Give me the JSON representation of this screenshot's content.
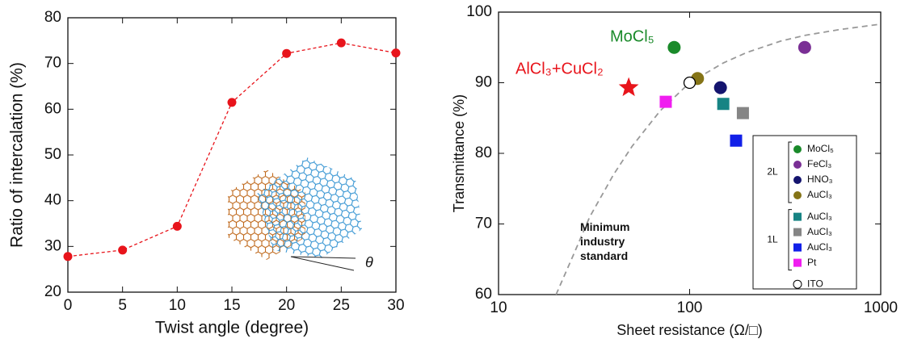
{
  "chart_data": [
    {
      "type": "line",
      "x_label": "Twist angle (degree)",
      "y_label": "Ratio of intercalation (%)",
      "x": [
        0,
        5,
        10,
        15,
        20,
        25,
        30
      ],
      "values": [
        27.8,
        29.2,
        34.4,
        61.5,
        72.2,
        74.5,
        72.3
      ],
      "color": "#e8141b",
      "line_style": "dashed",
      "xlim": [
        0,
        30
      ],
      "xticks": [
        0,
        5,
        10,
        15,
        20,
        25,
        30
      ],
      "ylim": [
        20,
        80
      ],
      "yticks": [
        20,
        30,
        40,
        50,
        60,
        70,
        80
      ],
      "inset_label": "θ"
    },
    {
      "type": "scatter",
      "x_label": "Sheet resistance (Ω/□)",
      "y_label": "Transmittance (%)",
      "log_x": true,
      "xlim": [
        10,
        1000
      ],
      "xticks": [
        10,
        100,
        1000
      ],
      "ylim": [
        60,
        100
      ],
      "yticks": [
        60,
        70,
        80,
        90,
        100
      ],
      "legend": "lower right",
      "series": [
        {
          "name": "MoCl₅",
          "group": "2L",
          "marker": "circle",
          "color": "#1a8a2a",
          "x": [
            83
          ],
          "values": [
            95
          ]
        },
        {
          "name": "FeCl₃",
          "group": "2L",
          "marker": "circle",
          "color": "#7a2f95",
          "x": [
            400
          ],
          "values": [
            95
          ]
        },
        {
          "name": "HNO₃",
          "group": "2L",
          "marker": "circle",
          "color": "#14146e",
          "x": [
            145
          ],
          "values": [
            89.3
          ]
        },
        {
          "name": "AuCl₃",
          "group": "2L",
          "marker": "circle",
          "color": "#857417",
          "x": [
            110
          ],
          "values": [
            90.6
          ]
        },
        {
          "name": "AuCl₃",
          "group": "1L",
          "marker": "square",
          "color": "#178484",
          "x": [
            150
          ],
          "values": [
            87
          ]
        },
        {
          "name": "AuCl₃",
          "group": "1L",
          "marker": "square",
          "color": "#858585",
          "x": [
            190
          ],
          "values": [
            85.7
          ]
        },
        {
          "name": "AuCl₃",
          "group": "1L",
          "marker": "square",
          "color": "#1220e8",
          "x": [
            175
          ],
          "values": [
            81.8
          ]
        },
        {
          "name": "Pt",
          "group": "1L",
          "marker": "square",
          "color": "#f01ef0",
          "x": [
            75
          ],
          "values": [
            87.3
          ]
        },
        {
          "name": "ITO",
          "marker": "open-circle",
          "color": "#000000",
          "x": [
            100
          ],
          "values": [
            90
          ]
        }
      ],
      "highlight": {
        "name": "AlCl₃+CuCl₂",
        "marker": "star",
        "color": "#e8141b",
        "x": [
          48
        ],
        "values": [
          89.3
        ]
      },
      "annotation": {
        "text": "MoCl₅",
        "color": "#1a8a2a"
      },
      "curve": {
        "label": "Minimum industry standard",
        "color": "#999999",
        "line_style": "dashed",
        "x": [
          20,
          25,
          30,
          40,
          50,
          70,
          100,
          150,
          200,
          300,
          400,
          600,
          1000
        ],
        "values": [
          60,
          66,
          71,
          77,
          81,
          86,
          90,
          92.8,
          94.3,
          95.9,
          96.7,
          97.5,
          98.3
        ]
      }
    }
  ]
}
